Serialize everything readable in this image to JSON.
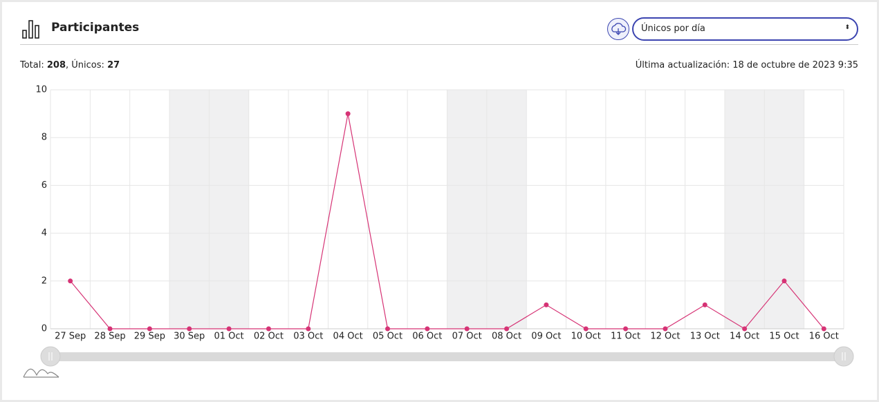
{
  "header": {
    "title": "Participantes",
    "select": "Únicos por día"
  },
  "summary": {
    "total_label": "Total:",
    "total": 208,
    "unique_label": ", Únicos:",
    "unique": 27,
    "updated": "Última actualización: 18 de octubre de 2023 9:35"
  },
  "chart_data": {
    "type": "line",
    "categories": [
      "27 Sep",
      "28 Sep",
      "29 Sep",
      "30 Sep",
      "01 Oct",
      "02 Oct",
      "03 Oct",
      "04 Oct",
      "05 Oct",
      "06 Oct",
      "07 Oct",
      "08 Oct",
      "09 Oct",
      "10 Oct",
      "11 Oct",
      "12 Oct",
      "13 Oct",
      "14 Oct",
      "15 Oct",
      "16 Oct"
    ],
    "values": [
      2,
      0,
      0,
      0,
      0,
      0,
      0,
      9,
      0,
      0,
      0,
      0,
      1,
      0,
      0,
      0,
      1,
      0,
      2,
      0
    ],
    "color": "#d63375",
    "ylim": [
      0,
      10
    ],
    "yticks": [
      0,
      2,
      4,
      6,
      8,
      10
    ],
    "grid": true,
    "shaded_categories": [
      3,
      4,
      10,
      11,
      17,
      18
    ]
  }
}
